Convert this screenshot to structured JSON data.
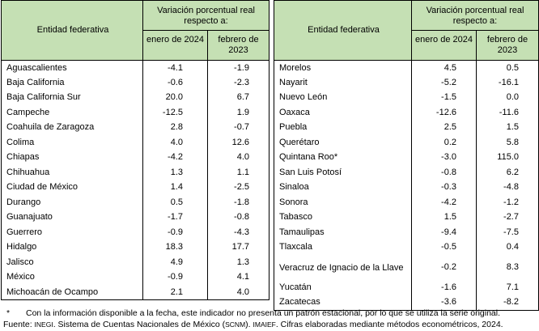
{
  "header": {
    "entity_label": "Entidad federativa",
    "variation_label": "Variación porcentual real respecto a:",
    "col1_label": "enero de 2024",
    "col2_label": "febrero de 2023"
  },
  "left_rows": [
    {
      "name": "Aguascalientes",
      "jan": "-4.1",
      "feb": "-1.9"
    },
    {
      "name": "Baja California",
      "jan": "-0.6",
      "feb": "-2.3"
    },
    {
      "name": "Baja California Sur",
      "jan": "20.0",
      "feb": "6.7"
    },
    {
      "name": "Campeche",
      "jan": "-12.5",
      "feb": "1.9"
    },
    {
      "name": "Coahuila de Zaragoza",
      "jan": "2.8",
      "feb": "-0.7"
    },
    {
      "name": "Colima",
      "jan": "4.0",
      "feb": "12.6"
    },
    {
      "name": "Chiapas",
      "jan": "-4.2",
      "feb": "4.0"
    },
    {
      "name": "Chihuahua",
      "jan": "1.3",
      "feb": "1.1"
    },
    {
      "name": "Ciudad de México",
      "jan": "1.4",
      "feb": "-2.5"
    },
    {
      "name": "Durango",
      "jan": "0.5",
      "feb": "-1.8"
    },
    {
      "name": "Guanajuato",
      "jan": "-1.7",
      "feb": "-0.8"
    },
    {
      "name": "Guerrero",
      "jan": "-0.9",
      "feb": "-4.3"
    },
    {
      "name": "Hidalgo",
      "jan": "18.3",
      "feb": "17.7"
    },
    {
      "name": "Jalisco",
      "jan": "4.9",
      "feb": "1.3"
    },
    {
      "name": "México",
      "jan": "-0.9",
      "feb": "4.1"
    },
    {
      "name": "Michoacán de Ocampo",
      "jan": "2.1",
      "feb": "4.0"
    }
  ],
  "right_rows": [
    {
      "name": "Morelos",
      "jan": "4.5",
      "feb": "0.5"
    },
    {
      "name": "Nayarit",
      "jan": "-5.2",
      "feb": "-16.1"
    },
    {
      "name": "Nuevo León",
      "jan": "-1.5",
      "feb": "0.0"
    },
    {
      "name": "Oaxaca",
      "jan": "-12.6",
      "feb": "-11.6"
    },
    {
      "name": "Puebla",
      "jan": "2.5",
      "feb": "1.5"
    },
    {
      "name": "Querétaro",
      "jan": "0.2",
      "feb": "5.8"
    },
    {
      "name": "Quintana Roo*",
      "jan": "-3.0",
      "feb": "115.0"
    },
    {
      "name": "San Luis Potosí",
      "jan": "-0.8",
      "feb": "6.2"
    },
    {
      "name": "Sinaloa",
      "jan": "-0.3",
      "feb": "-4.8"
    },
    {
      "name": "Sonora",
      "jan": "-4.2",
      "feb": "-1.2"
    },
    {
      "name": "Tabasco",
      "jan": "1.5",
      "feb": "-2.7"
    },
    {
      "name": "Tamaulipas",
      "jan": "-9.4",
      "feb": "-7.5"
    },
    {
      "name": "Tlaxcala",
      "jan": "-0.5",
      "feb": "0.4"
    },
    {
      "name": "Veracruz de Ignacio de la Llave",
      "jan": "-0.2",
      "feb": "8.3"
    },
    {
      "name": "Yucatán",
      "jan": "-1.6",
      "feb": "7.1"
    },
    {
      "name": "Zacatecas",
      "jan": "-3.6",
      "feb": "-8.2"
    }
  ],
  "footnote": {
    "mark": "*",
    "text": "Con la información disponible a la fecha, este indicador no presenta un patrón estacional, por lo que se utiliza la serie original.",
    "source_label": "Fuente:",
    "source_inegi": "INEGI",
    "source_mid": ". Sistema de Cuentas Nacionales de México (",
    "source_scnm": "SCNM",
    "source_mid2": "). ",
    "source_imaief": "IMAIEF",
    "source_end": ". Cifras elaboradas mediante métodos econométricos, 2024."
  }
}
